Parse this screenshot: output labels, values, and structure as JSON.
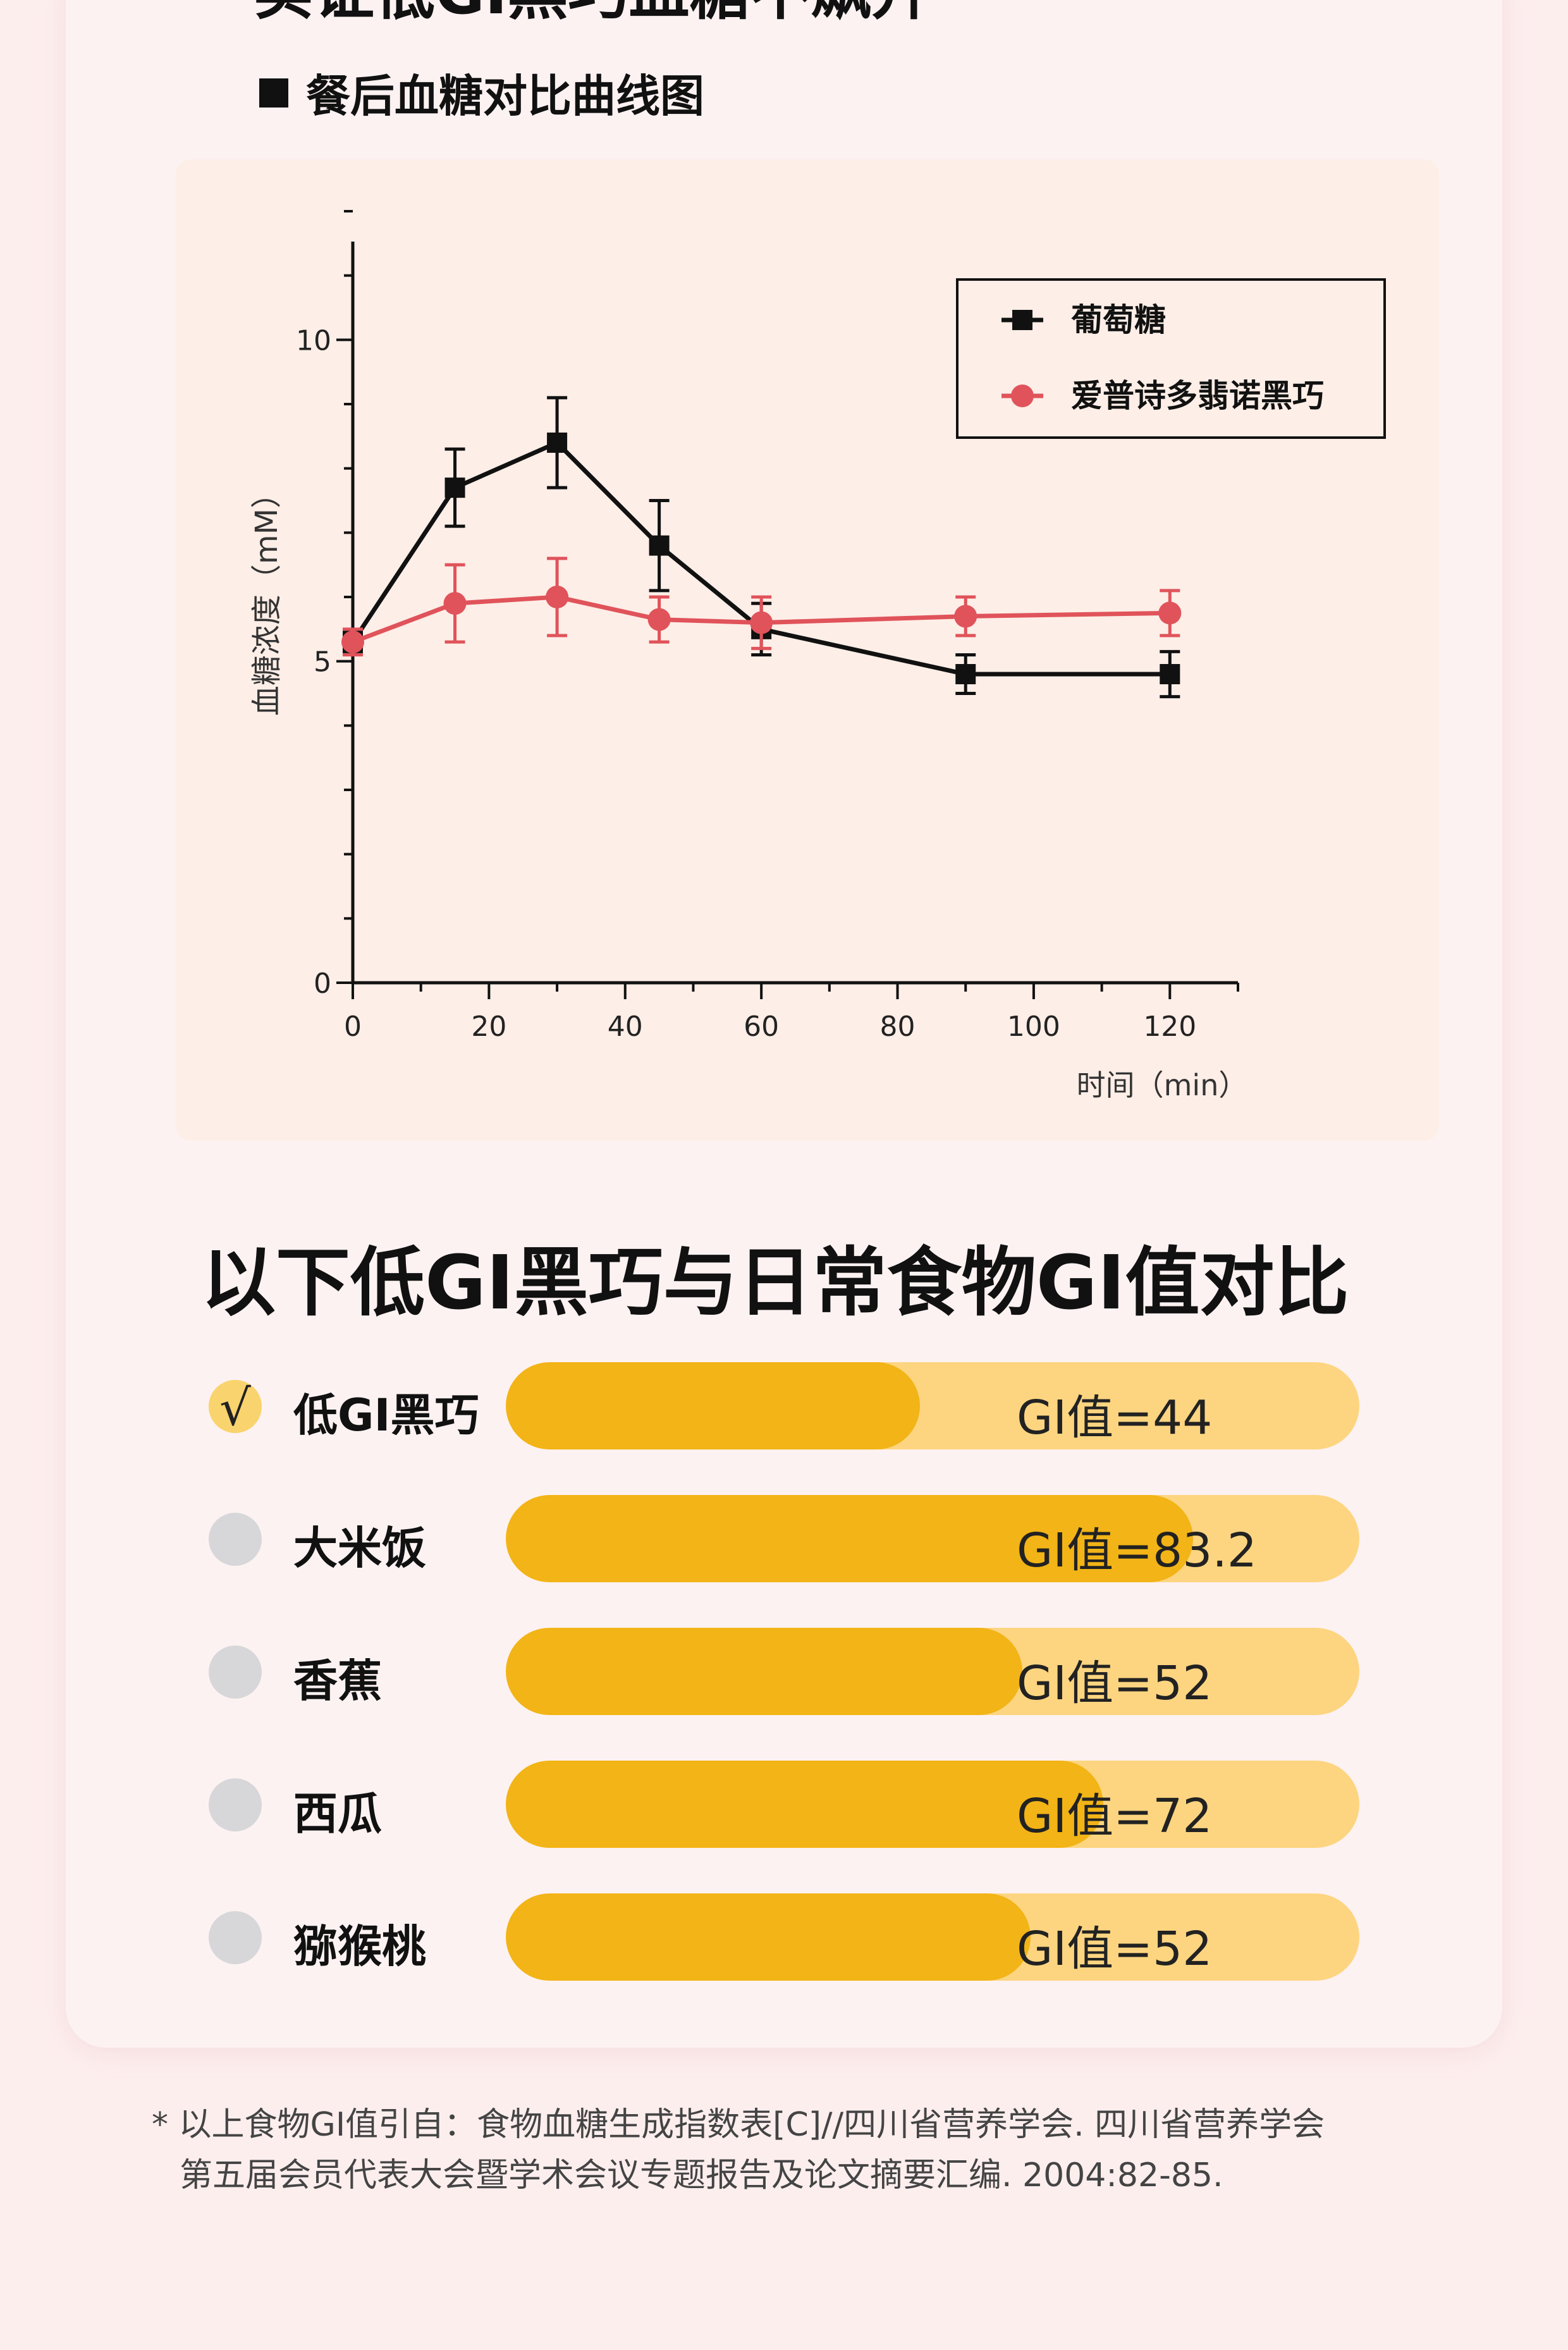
{
  "header": {
    "title": "实证低GI黑巧血糖不飙升",
    "chart_subtitle": "餐后血糖对比曲线图"
  },
  "chart_data": {
    "type": "line",
    "xlabel": "时间（min）",
    "ylabel": "血糖浓度（mM）",
    "xlim": [
      0,
      130
    ],
    "ylim": [
      0,
      12
    ],
    "x_ticks": [
      0,
      20,
      40,
      60,
      80,
      100,
      120
    ],
    "y_ticks": [
      0,
      5,
      10
    ],
    "grid": false,
    "legend_position": "top-right",
    "series": [
      {
        "name": "葡萄糖",
        "color": "#111111",
        "marker": "square",
        "x": [
          0,
          15,
          30,
          45,
          60,
          90,
          120
        ],
        "values": [
          5.3,
          7.7,
          8.4,
          6.8,
          5.5,
          4.8,
          4.8
        ],
        "error": [
          0.15,
          0.6,
          0.7,
          0.7,
          0.4,
          0.3,
          0.35
        ]
      },
      {
        "name": "爱普诗多翡诺黑巧",
        "color": "#e0535a",
        "marker": "circle",
        "x": [
          0,
          15,
          30,
          60,
          45,
          90,
          120
        ],
        "values": [
          5.3,
          5.9,
          6.0,
          5.6,
          5.65,
          5.7,
          5.75
        ],
        "error": [
          0.2,
          0.6,
          0.6,
          0.4,
          0.35,
          0.3,
          0.35
        ]
      }
    ]
  },
  "comparison": {
    "title": "以下低GI黑巧与日常食物GI值对比",
    "check_glyph": "√",
    "items": [
      {
        "name": "低GI黑巧",
        "gi": 44,
        "label": "GI值=44",
        "selected": true
      },
      {
        "name": "大米饭",
        "gi": 83.2,
        "label": "GI值=83.2",
        "selected": false
      },
      {
        "name": "香蕉",
        "gi": 52,
        "label": "GI值=52",
        "selected": false
      },
      {
        "name": "西瓜",
        "gi": 72,
        "label": "GI值=72",
        "selected": false
      },
      {
        "name": "猕猴桃",
        "gi": 52,
        "label": "GI值=52",
        "selected": false
      }
    ],
    "colors": {
      "fill": "#f2b416",
      "track": "#fdd580",
      "check": "#f9d36d",
      "radio": "#d7d7da"
    }
  },
  "footnote": {
    "line1": "* 以上食物GI值引自：食物血糖生成指数表[C]//四川省营养学会. 四川省营养学会",
    "line2": "第五届会员代表大会暨学术会议专题报告及论文摘要汇编. 2004:82-85."
  }
}
